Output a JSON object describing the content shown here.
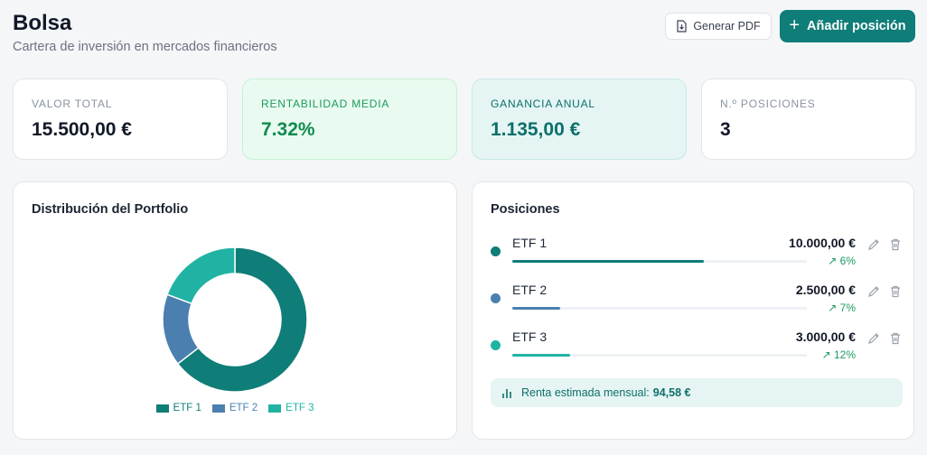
{
  "header": {
    "title": "Bolsa",
    "subtitle": "Cartera de inversión en mercados financieros",
    "pdf_label": "Generar PDF",
    "add_label": "Añadir posición"
  },
  "stats": [
    {
      "label": "VALOR TOTAL",
      "value": "15.500,00 €"
    },
    {
      "label": "RENTABILIDAD MEDIA",
      "value": "7.32%"
    },
    {
      "label": "GANANCIA ANUAL",
      "value": "1.135,00 €"
    },
    {
      "label": "N.º POSICIONES",
      "value": "3"
    }
  ],
  "distribution": {
    "title": "Distribución del Portfolio",
    "chart_data": {
      "type": "pie",
      "series": [
        {
          "name": "ETF 1",
          "value": 10000,
          "color": "#0f7d78"
        },
        {
          "name": "ETF 2",
          "value": 2500,
          "color": "#4a7fb0"
        },
        {
          "name": "ETF 3",
          "value": 3000,
          "color": "#20b3a3"
        }
      ],
      "legend": "bottom"
    }
  },
  "positions": {
    "title": "Posiciones",
    "items": [
      {
        "name": "ETF 1",
        "amount": "10.000,00 €",
        "return": "6%",
        "share": 0.645,
        "color": "#0f7d78"
      },
      {
        "name": "ETF 2",
        "amount": "2.500,00 €",
        "return": "7%",
        "share": 0.161,
        "color": "#4a7fb0"
      },
      {
        "name": "ETF 3",
        "amount": "3.000,00 €",
        "return": "12%",
        "share": 0.194,
        "color": "#20b3a3"
      }
    ],
    "renta_label": "Renta estimada mensual:",
    "renta_value": "94,58 €"
  },
  "icons": {
    "pdf": "file-download-icon",
    "add": "plus-icon",
    "edit": "pencil-icon",
    "delete": "trash-icon",
    "trend": "trending-up-icon",
    "chart": "bar-chart-icon"
  }
}
